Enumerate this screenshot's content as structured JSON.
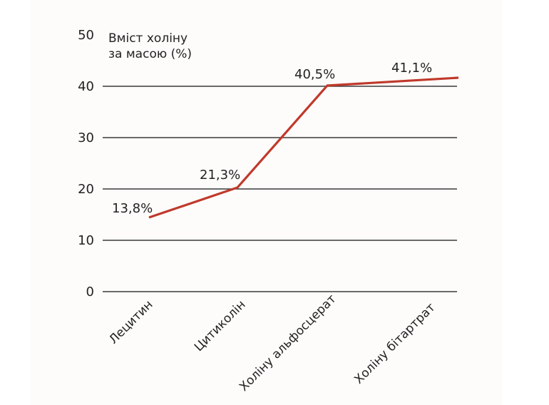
{
  "chart_data": {
    "type": "line",
    "title": "Вміст холіну за масою (%)",
    "title_lines": [
      "Вміст холіну",
      "за масою (%)"
    ],
    "xlabel": "",
    "ylabel": "Вміст холіну за масою (%)",
    "categories": [
      "Лецитин",
      "Цитиколін",
      "Холіну альфосцерат",
      "Холіну бітартрат"
    ],
    "values": [
      13.8,
      21.3,
      40.5,
      41.1
    ],
    "data_labels": [
      "13,8%",
      "21,3%",
      "40,5%",
      "41,1%"
    ],
    "yticks": [
      0,
      10,
      20,
      30,
      40,
      50
    ],
    "ylim": [
      0,
      50
    ],
    "grid": true,
    "series_color": "#c0392b",
    "legend": "none"
  }
}
